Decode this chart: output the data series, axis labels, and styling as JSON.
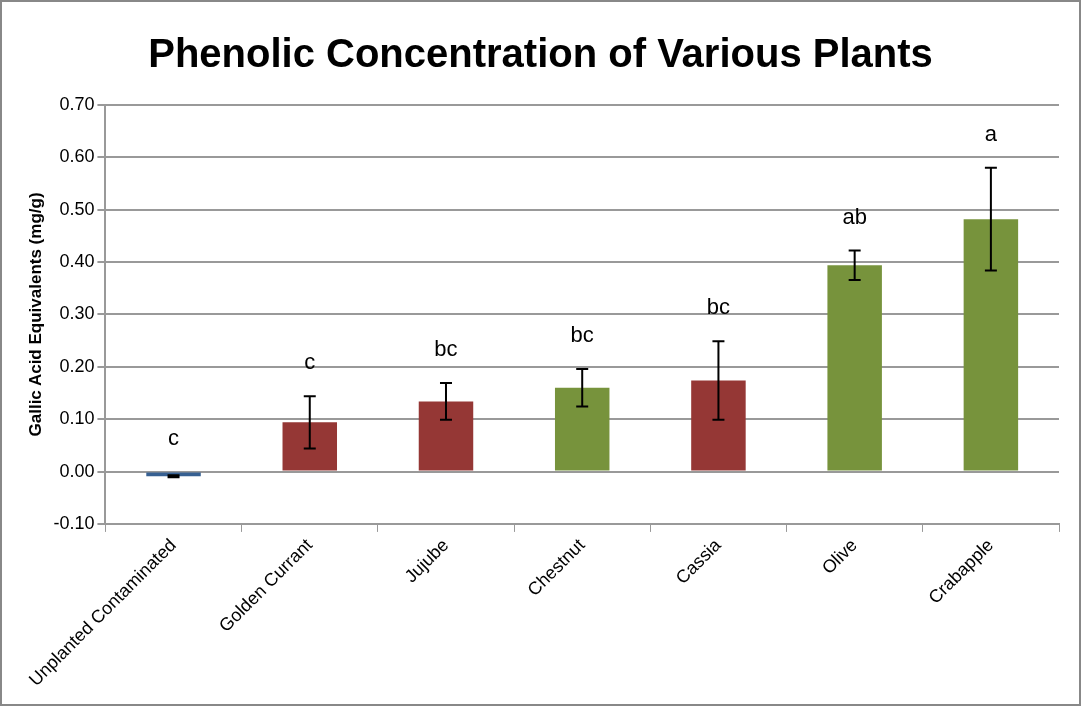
{
  "chart_data": {
    "type": "bar",
    "title": "Phenolic Concentration of Various Plants",
    "ylabel": "Gallic Acid Equivalents (mg/g)",
    "categories": [
      "Unplanted Contaminated",
      "Golden Currant",
      "Jujube",
      "Chestnut",
      "Cassia",
      "Olive",
      "Crabapple"
    ],
    "values": [
      -0.009,
      0.094,
      0.134,
      0.16,
      0.174,
      0.394,
      0.482
    ],
    "colors": [
      "#376092",
      "#953735",
      "#953735",
      "#77933c",
      "#953735",
      "#77933c",
      "#77933c"
    ],
    "errors": [
      0.002,
      0.05,
      0.035,
      0.036,
      0.075,
      0.028,
      0.098
    ],
    "ylim": [
      -0.1,
      0.7
    ],
    "yticks": [
      {
        "value": -0.1,
        "label": "-0.10"
      },
      {
        "value": 0,
        "label": "0.00"
      },
      {
        "value": 0.1,
        "label": "0.10"
      },
      {
        "value": 0.2,
        "label": "0.20"
      },
      {
        "value": 0.3,
        "label": "0.30"
      },
      {
        "value": 0.4,
        "label": "0.40"
      },
      {
        "value": 0.5,
        "label": "0.50"
      },
      {
        "value": 0.6,
        "label": "0.60"
      },
      {
        "value": 0.7,
        "label": "0.70"
      }
    ],
    "grid": "y",
    "legend": false,
    "annotations": [
      "c",
      "c",
      "bc",
      "bc",
      "bc",
      "ab",
      "a"
    ]
  }
}
